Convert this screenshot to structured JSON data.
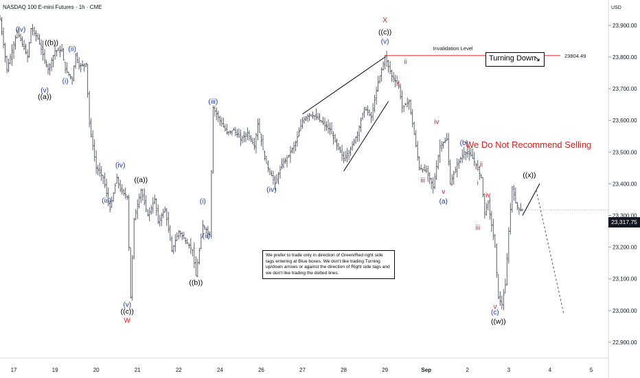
{
  "header": {
    "title": "NASDAQ 100 E-mini Futures · 1h · CME"
  },
  "currency": "USD",
  "current_price": "23,317.75",
  "turning_box": {
    "label": "Turning Down",
    "arrow": "↘"
  },
  "recommendation": "We Do Not Recommend Selling",
  "note": "We prefer to trade only in direction of Green/Red right side tags entering at Blue boxes. We don't like trading Turning up/down arrows or against the direction of Right side tags and we don't like trading the dotted lines.",
  "invalidation": {
    "label": "Invalidation Level",
    "value": 23804.49,
    "value_label": "23804.49",
    "color": "#e01f1f"
  },
  "colors": {
    "blue": "#1e3ea8",
    "red": "#e01f1f",
    "black": "#000000",
    "candle": "#4a4f5a"
  },
  "chart_data": {
    "type": "line",
    "ylim": [
      22850,
      23980
    ],
    "y_ticks": [
      {
        "value": 22900,
        "label": "22,900.00"
      },
      {
        "value": 23000,
        "label": "23,000.00"
      },
      {
        "value": 23100,
        "label": "23,100.00"
      },
      {
        "value": 23200,
        "label": "23,200.00"
      },
      {
        "value": 23300,
        "label": "23,300.00"
      },
      {
        "value": 23400,
        "label": "23,400.00"
      },
      {
        "value": 23500,
        "label": "23,500.00"
      },
      {
        "value": 23600,
        "label": "23,600.00"
      },
      {
        "value": 23700,
        "label": "23,700.00"
      },
      {
        "value": 23800,
        "label": "23,800.00"
      },
      {
        "value": 23900,
        "label": "23,900.00"
      }
    ],
    "x_ticks": [
      {
        "i": 0,
        "label": "17"
      },
      {
        "i": 12,
        "label": "19"
      },
      {
        "i": 24,
        "label": "20"
      },
      {
        "i": 36,
        "label": "21"
      },
      {
        "i": 48,
        "label": "22"
      },
      {
        "i": 60,
        "label": "24"
      },
      {
        "i": 72,
        "label": "26"
      },
      {
        "i": 84,
        "label": "27"
      },
      {
        "i": 96,
        "label": "28"
      },
      {
        "i": 108,
        "label": "29"
      },
      {
        "i": 120,
        "label": "Sep"
      },
      {
        "i": 132,
        "label": "2"
      },
      {
        "i": 144,
        "label": "3"
      },
      {
        "i": 156,
        "label": "4"
      },
      {
        "i": 168,
        "label": "5"
      }
    ],
    "x_span": [
      -4,
      173
    ],
    "price_path": [
      [
        -4,
        23920
      ],
      [
        -2,
        23760
      ],
      [
        1,
        23880
      ],
      [
        4,
        23800
      ],
      [
        5,
        23890
      ],
      [
        7,
        23860
      ],
      [
        9,
        23790
      ],
      [
        10,
        23760
      ],
      [
        12,
        23820
      ],
      [
        14,
        23820
      ],
      [
        15,
        23760
      ],
      [
        17,
        23730
      ],
      [
        18,
        23810
      ],
      [
        19,
        23770
      ],
      [
        21,
        23780
      ],
      [
        22,
        23590
      ],
      [
        24,
        23450
      ],
      [
        26,
        23420
      ],
      [
        28,
        23320
      ],
      [
        30,
        23420
      ],
      [
        31,
        23380
      ],
      [
        33,
        23360
      ],
      [
        34,
        23040
      ],
      [
        35,
        23290
      ],
      [
        37,
        23380
      ],
      [
        39,
        23300
      ],
      [
        41,
        23350
      ],
      [
        42,
        23280
      ],
      [
        44,
        23320
      ],
      [
        46,
        23190
      ],
      [
        48,
        23250
      ],
      [
        50,
        23220
      ],
      [
        52,
        23190
      ],
      [
        53,
        23110
      ],
      [
        55,
        23270
      ],
      [
        57,
        23240
      ],
      [
        58,
        23640
      ],
      [
        60,
        23600
      ],
      [
        62,
        23560
      ],
      [
        64,
        23570
      ],
      [
        66,
        23540
      ],
      [
        68,
        23560
      ],
      [
        70,
        23520
      ],
      [
        71,
        23590
      ],
      [
        73,
        23480
      ],
      [
        74,
        23450
      ],
      [
        76,
        23400
      ],
      [
        78,
        23460
      ],
      [
        80,
        23490
      ],
      [
        82,
        23530
      ],
      [
        84,
        23600
      ],
      [
        86,
        23620
      ],
      [
        88,
        23610
      ],
      [
        90,
        23590
      ],
      [
        92,
        23570
      ],
      [
        94,
        23520
      ],
      [
        96,
        23480
      ],
      [
        98,
        23510
      ],
      [
        100,
        23560
      ],
      [
        102,
        23640
      ],
      [
        104,
        23610
      ],
      [
        106,
        23720
      ],
      [
        108,
        23800
      ],
      [
        110,
        23740
      ],
      [
        112,
        23710
      ],
      [
        113,
        23640
      ],
      [
        115,
        23660
      ],
      [
        116,
        23590
      ],
      [
        118,
        23450
      ],
      [
        120,
        23440
      ],
      [
        122,
        23390
      ],
      [
        124,
        23520
      ],
      [
        126,
        23540
      ],
      [
        127,
        23400
      ],
      [
        129,
        23460
      ],
      [
        131,
        23500
      ],
      [
        133,
        23490
      ],
      [
        134,
        23470
      ],
      [
        136,
        23420
      ],
      [
        137,
        23310
      ],
      [
        138,
        23340
      ],
      [
        140,
        23200
      ],
      [
        141,
        23040
      ],
      [
        142,
        23020
      ],
      [
        143,
        23080
      ],
      [
        144,
        23250
      ],
      [
        145,
        23390
      ],
      [
        146,
        23340
      ],
      [
        147,
        23320
      ],
      [
        148,
        23317
      ]
    ],
    "black_lines": [
      [
        [
          84,
          23620
        ],
        [
          108,
          23800
        ]
      ],
      [
        [
          96,
          23440
        ],
        [
          109,
          23660
        ]
      ],
      [
        [
          148,
          23300
        ],
        [
          153,
          23400
        ]
      ]
    ],
    "dashed_projection": [
      [
        152,
        23380
      ],
      [
        160,
        22990
      ]
    ],
    "invalidation_from_i": 108,
    "annotations": [
      {
        "label": "(iv)",
        "i": 2,
        "v": 23880,
        "color": "blue"
      },
      {
        "label": "((b))",
        "i": 11,
        "v": 23838,
        "color": "black"
      },
      {
        "label": "(ii)",
        "i": 17,
        "v": 23818,
        "color": "blue"
      },
      {
        "label": "(i)",
        "i": 15,
        "v": 23718,
        "color": "blue"
      },
      {
        "label": "(v)",
        "i": 9,
        "v": 23688,
        "color": "blue"
      },
      {
        "label": "((a))",
        "i": 9,
        "v": 23668,
        "color": "black"
      },
      {
        "label": "(iv)",
        "i": 31,
        "v": 23452,
        "color": "blue"
      },
      {
        "label": "(iii)",
        "i": 27,
        "v": 23340,
        "color": "blue"
      },
      {
        "label": "((a))",
        "i": 37,
        "v": 23405,
        "color": "black"
      },
      {
        "label": "(v)",
        "i": 33,
        "v": 23012,
        "color": "blue"
      },
      {
        "label": "((c))",
        "i": 33,
        "v": 22990,
        "color": "black"
      },
      {
        "label": "W",
        "i": 33,
        "v": 22962,
        "color": "red"
      },
      {
        "label": "(i)",
        "i": 55,
        "v": 23338,
        "color": "blue"
      },
      {
        "label": "(ii)",
        "i": 56,
        "v": 23228,
        "color": "blue"
      },
      {
        "label": "((b))",
        "i": 53,
        "v": 23081,
        "color": "black"
      },
      {
        "label": "(iii)",
        "i": 58,
        "v": 23652,
        "color": "blue"
      },
      {
        "label": "(iv)",
        "i": 75,
        "v": 23375,
        "color": "blue"
      },
      {
        "label": "X",
        "i": 108,
        "v": 23910,
        "color": "red"
      },
      {
        "label": "((c))",
        "i": 108,
        "v": 23872,
        "color": "black"
      },
      {
        "label": "(v)",
        "i": 108,
        "v": 23842,
        "color": "blue"
      },
      {
        "label": "ii",
        "i": 114,
        "v": 23778,
        "color": "red"
      },
      {
        "label": "i",
        "i": 112,
        "v": 23710,
        "color": "red"
      },
      {
        "label": "iv",
        "i": 123,
        "v": 23588,
        "color": "red"
      },
      {
        "label": "iii",
        "i": 119,
        "v": 23404,
        "color": "red"
      },
      {
        "label": "v",
        "i": 125,
        "v": 23368,
        "color": "red"
      },
      {
        "label": "(a)",
        "i": 125,
        "v": 23338,
        "color": "blue"
      },
      {
        "label": "(b)",
        "i": 131,
        "v": 23522,
        "color": "blue"
      },
      {
        "label": "ii",
        "i": 136,
        "v": 23454,
        "color": "red"
      },
      {
        "label": "i",
        "i": 135,
        "v": 23396,
        "color": "red"
      },
      {
        "label": "iv",
        "i": 138,
        "v": 23357,
        "color": "red"
      },
      {
        "label": "iii",
        "i": 135,
        "v": 23254,
        "color": "red"
      },
      {
        "label": "v",
        "i": 140,
        "v": 23005,
        "color": "red"
      },
      {
        "label": "(c)",
        "i": 140,
        "v": 22988,
        "color": "blue"
      },
      {
        "label": "((w))",
        "i": 141,
        "v": 22958,
        "color": "black"
      },
      {
        "label": "((x))",
        "i": 150,
        "v": 23420,
        "color": "black"
      }
    ]
  }
}
